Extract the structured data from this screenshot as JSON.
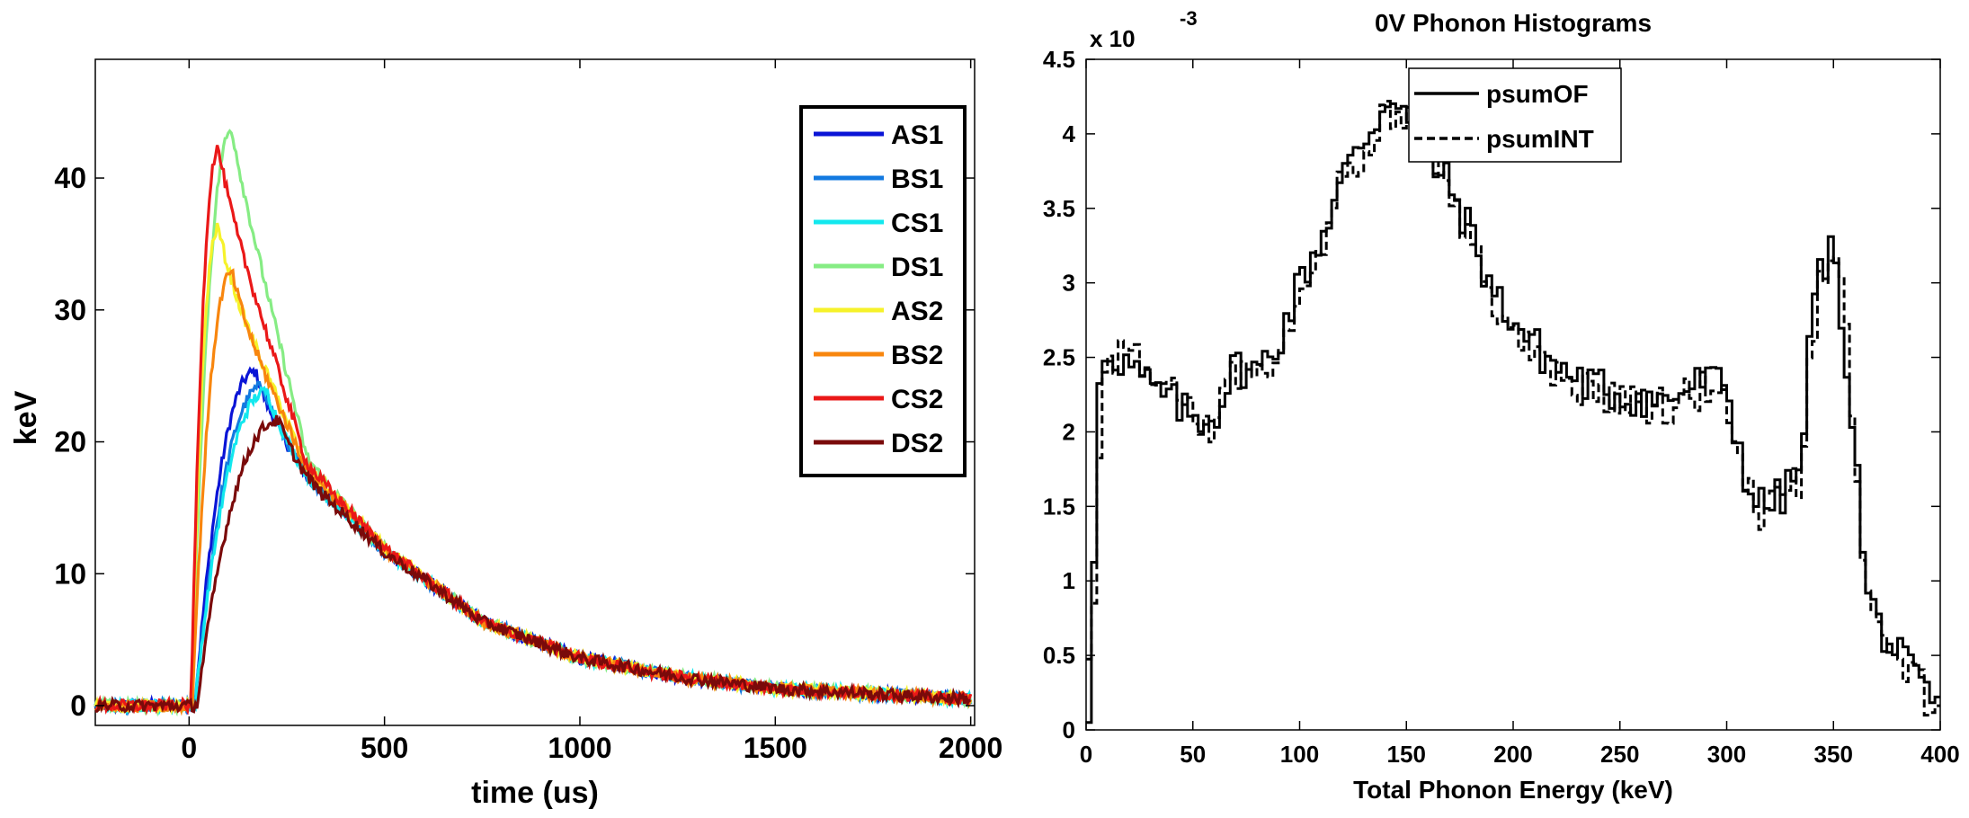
{
  "chart_data": [
    {
      "type": "line",
      "title": "",
      "xlabel": "time (us)",
      "ylabel": "keV",
      "xlim": [
        -240,
        2010
      ],
      "ylim": [
        -1.5,
        49
      ],
      "xticks": [
        0,
        500,
        1000,
        1500,
        2000
      ],
      "yticks": [
        0,
        10,
        20,
        30,
        40
      ],
      "grid": false,
      "legend_position": "top-right",
      "noise_amplitude": 0.45,
      "series": [
        {
          "name": "AS1",
          "color": "#0a14d6",
          "peak": 25.3,
          "t_peak": 170,
          "rise_start": 15
        },
        {
          "name": "BS1",
          "color": "#1279e0",
          "peak": 24.2,
          "t_peak": 190,
          "rise_start": 15
        },
        {
          "name": "CS1",
          "color": "#12e8ee",
          "peak": 23.8,
          "t_peak": 200,
          "rise_start": 15
        },
        {
          "name": "DS1",
          "color": "#86ec84",
          "peak": 43.6,
          "t_peak": 110,
          "rise_start": 5
        },
        {
          "name": "AS2",
          "color": "#f6f22a",
          "peak": 36.2,
          "t_peak": 75,
          "rise_start": 5
        },
        {
          "name": "BS2",
          "color": "#f8860e",
          "peak": 32.8,
          "t_peak": 110,
          "rise_start": 8
        },
        {
          "name": "CS2",
          "color": "#ea1818",
          "peak": 42.2,
          "t_peak": 75,
          "rise_start": 5
        },
        {
          "name": "DS2",
          "color": "#7a0a0a",
          "peak": 21.6,
          "t_peak": 230,
          "rise_start": 20
        }
      ],
      "decay_tail": {
        "t": [
          300,
          500,
          750,
          1000,
          1250,
          1500,
          1750,
          2000
        ],
        "values": [
          18.5,
          12.0,
          6.4,
          3.6,
          2.2,
          1.3,
          0.9,
          0.5
        ]
      }
    },
    {
      "type": "line",
      "title": "0V Phonon Histograms",
      "xlabel": "Total Phonon Energy (keV)",
      "ylabel": "",
      "y_multiplier": "x 10",
      "y_multiplier_exp": "-3",
      "xlim": [
        0,
        400
      ],
      "ylim": [
        0,
        4.5
      ],
      "xticks": [
        0,
        50,
        100,
        150,
        200,
        250,
        300,
        350,
        400
      ],
      "yticks": [
        0,
        0.5,
        1,
        1.5,
        2,
        2.5,
        3,
        3.5,
        4,
        4.5
      ],
      "grid": false,
      "legend_position": "top-left",
      "bin_width_keV": 2.5,
      "series": [
        {
          "name": "psumOF",
          "style": "solid",
          "knots_x": [
            0,
            2.5,
            5,
            7.5,
            10,
            20,
            30,
            40,
            50,
            60,
            70,
            80,
            90,
            100,
            110,
            120,
            130,
            140,
            145,
            155,
            170,
            180,
            190,
            200,
            215,
            230,
            250,
            270,
            290,
            300,
            305,
            310,
            315,
            325,
            335,
            340,
            345,
            350,
            355,
            360,
            365,
            370,
            380,
            390,
            400
          ],
          "knots_y": [
            0.1,
            0.0,
            2.25,
            2.4,
            2.55,
            2.45,
            2.3,
            2.2,
            2.1,
            2.1,
            2.45,
            2.4,
            2.6,
            3.0,
            3.3,
            3.7,
            3.95,
            4.2,
            4.3,
            3.95,
            3.65,
            3.35,
            2.95,
            2.75,
            2.5,
            2.35,
            2.25,
            2.2,
            2.35,
            2.3,
            1.95,
            1.65,
            1.5,
            1.55,
            1.75,
            2.8,
            3.15,
            3.2,
            2.65,
            1.95,
            0.95,
            0.75,
            0.5,
            0.3,
            0.12
          ]
        },
        {
          "name": "psumINT",
          "style": "dashed",
          "knots_x": [
            0,
            2.5,
            5,
            7.5,
            10,
            20,
            30,
            40,
            50,
            60,
            70,
            80,
            90,
            100,
            110,
            120,
            130,
            140,
            145,
            155,
            170,
            180,
            190,
            200,
            215,
            230,
            250,
            270,
            290,
            300,
            305,
            310,
            315,
            325,
            335,
            340,
            345,
            350,
            355,
            360,
            365,
            370,
            380,
            390,
            400
          ],
          "knots_y": [
            0.6,
            0.35,
            1.35,
            2.3,
            2.5,
            2.55,
            2.35,
            2.25,
            2.1,
            2.05,
            2.4,
            2.45,
            2.5,
            2.95,
            3.25,
            3.75,
            3.9,
            4.1,
            4.15,
            4.0,
            3.6,
            3.3,
            2.9,
            2.65,
            2.45,
            2.3,
            2.25,
            2.15,
            2.3,
            2.25,
            1.9,
            1.6,
            1.45,
            1.5,
            1.7,
            2.6,
            3.05,
            3.1,
            2.9,
            1.85,
            0.85,
            0.7,
            0.55,
            0.3,
            0.1
          ]
        }
      ]
    }
  ]
}
